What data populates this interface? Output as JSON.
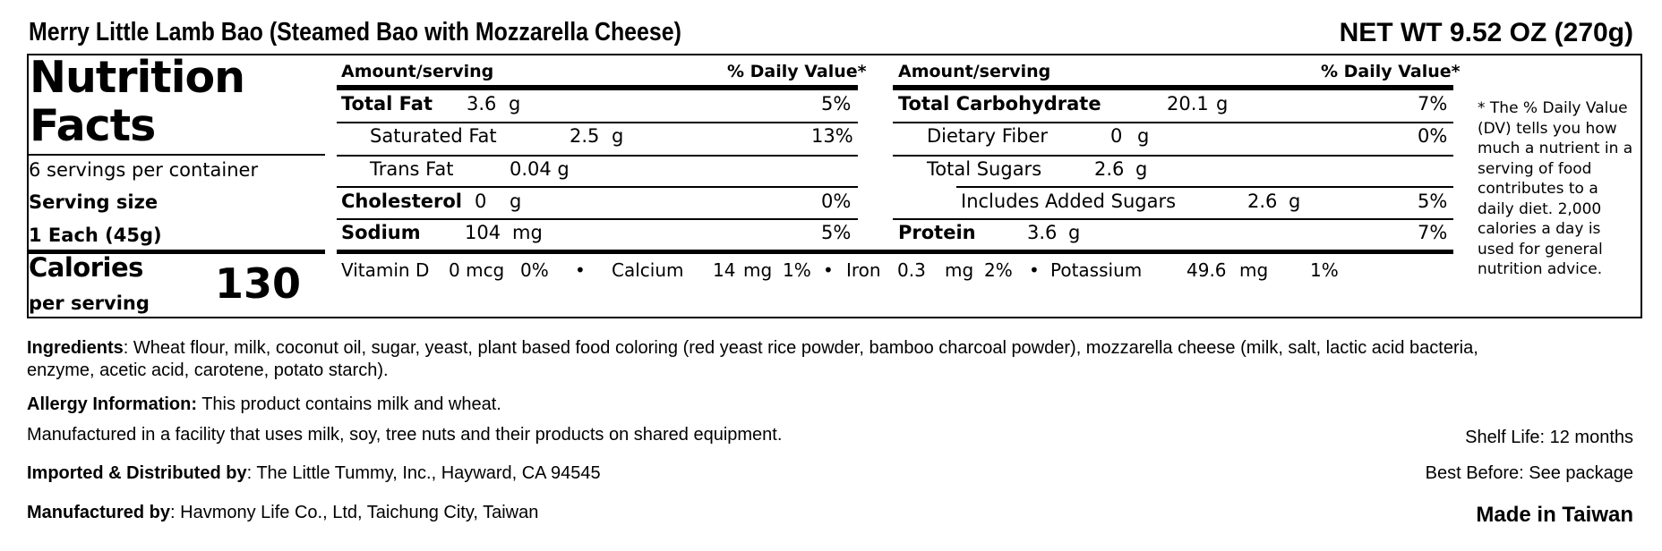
{
  "product": {
    "title": "Merry Little Lamb Bao (Steamed Bao with Mozzarella Cheese)",
    "net_weight": "NET WT 9.52 OZ (270g)"
  },
  "facts": {
    "heading_line1": "Nutrition",
    "heading_line2": "Facts",
    "servings": "6 servings per container",
    "serving_size_label": "Serving size",
    "serving_size_value": "1 Each (45g)",
    "calories_label": "Calories",
    "per_serving": "per serving",
    "calories_value": "130"
  },
  "left_table": {
    "amount_header": "Amount/serving",
    "dv_header": "% Daily Value*",
    "rows": [
      {
        "label": "Total Fat",
        "amount": "3.6",
        "unit": "g",
        "dv": "5%"
      },
      {
        "label": "Saturated Fat",
        "amount": "2.5",
        "unit": "g",
        "dv": "13%"
      },
      {
        "label": "Trans Fat",
        "amount": "0.04 g",
        "unit": "",
        "dv": ""
      },
      {
        "label": "Cholesterol",
        "amount": "0",
        "unit": "g",
        "dv": "0%"
      },
      {
        "label": "Sodium",
        "amount": "104",
        "unit": "mg",
        "dv": "5%"
      }
    ]
  },
  "right_table": {
    "amount_header": "Amount/serving",
    "dv_header": "% Daily Value*",
    "rows": [
      {
        "label": "Total Carbohydrate",
        "amount": "20.1",
        "unit": "g",
        "dv": "7%"
      },
      {
        "label": "Dietary Fiber",
        "amount": "0",
        "unit": "g",
        "dv": "0%"
      },
      {
        "label": "Total Sugars",
        "amount": "2.6",
        "unit": "g",
        "dv": ""
      },
      {
        "label": "Includes Added Sugars",
        "amount": "2.6",
        "unit": "g",
        "dv": "5%"
      },
      {
        "label": "Protein",
        "amount": "3.6",
        "unit": "g",
        "dv": "7%"
      }
    ]
  },
  "vitamins": {
    "vitd_label": "Vitamin D",
    "vitd_amount": "0 mcg",
    "vitd_dv": "0%",
    "calcium_label": "Calcium",
    "calcium_amount": "14",
    "calcium_unit": "mg",
    "calcium_dv": "1%",
    "iron_label": "Iron",
    "iron_amount": "0.3",
    "iron_unit": "mg",
    "iron_dv": "2%",
    "potassium_label": "Potassium",
    "potassium_amount": "49.6",
    "potassium_unit": "mg",
    "potassium_dv": "1%",
    "separator": "•"
  },
  "footnote": "* The % Daily Value (DV) tells you how much a nutrient in a serving of food contributes to a daily diet. 2,000 calories a day is used for general nutrition advice.",
  "info": {
    "ingredients_label": "Ingredients",
    "ingredients_line1": ": Wheat flour, milk, coconut oil, sugar, yeast, plant based food coloring (red yeast rice powder, bamboo charcoal powder), mozzarella cheese (milk, salt, lactic acid bacteria,",
    "ingredients_line2": "enzyme, acetic acid, carotene, potato starch).",
    "allergy_label": "Allergy Information:",
    "allergy_text": " This product contains milk and wheat.",
    "facility_text": "Manufactured in a facility that uses milk, soy, tree nuts and their products on shared equipment.",
    "imported_label": "Imported & Distributed by",
    "imported_text": ": The Little Tummy, Inc., Hayward, CA 94545",
    "manufactured_label": "Manufactured by",
    "manufactured_text": ": Havmony Life Co., Ltd, Taichung City, Taiwan",
    "shelf_life": "Shelf Life: 12 months",
    "best_before": "Best Before: See package",
    "made_in": "Made in Taiwan"
  }
}
